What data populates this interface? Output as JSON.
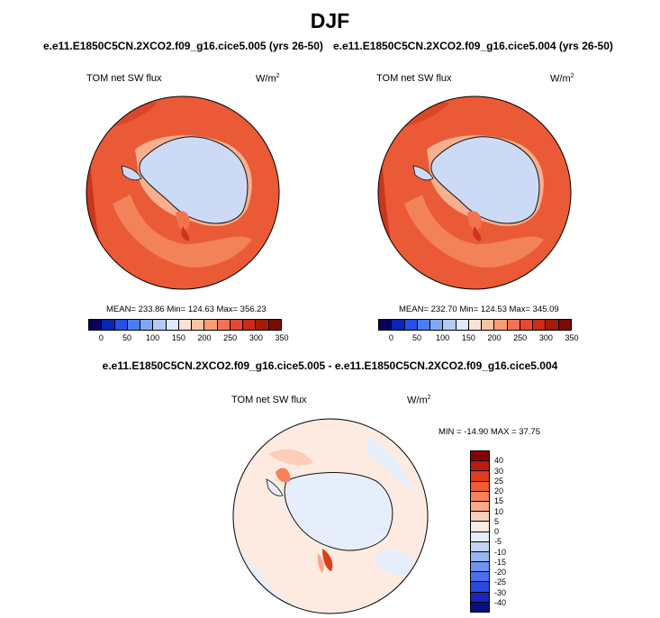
{
  "header": {
    "title": "DJF"
  },
  "panels": [
    {
      "case": "e.e11.E1850C5CN.2XCO2.f09_g16.cice5.005 (yrs 26-50)",
      "variable": "TOM net SW flux",
      "units_base": "W/m",
      "units_exp": "2",
      "stats": "MEAN= 233.86   Min= 124.63   Max= 356.23"
    },
    {
      "case": "e.e11.E1850C5CN.2XCO2.f09_g16.cice5.004 (yrs 26-50)",
      "variable": "TOM net SW flux",
      "units_base": "W/m",
      "units_exp": "2",
      "stats": "MEAN= 232.70   Min= 124.53   Max= 345.09"
    }
  ],
  "abs_colorbar": {
    "colors": [
      "#08005e",
      "#0626b5",
      "#2450e8",
      "#4a7ef0",
      "#7fa8f3",
      "#b3cbf6",
      "#dde8fa",
      "#fce2d2",
      "#fbc3a3",
      "#f89c77",
      "#f37253",
      "#e9472f",
      "#cd2a17",
      "#a51a0b",
      "#7a0c04"
    ],
    "labels": [
      "0",
      "50",
      "100",
      "150",
      "200",
      "250",
      "300",
      "350"
    ]
  },
  "diff": {
    "title": "e.e11.E1850C5CN.2XCO2.f09_g16.cice5.005 - e.e11.E1850C5CN.2XCO2.f09_g16.cice5.004",
    "variable": "TOM net SW flux",
    "units_base": "W/m",
    "units_exp": "2",
    "stats": "MIN = -14.90 MAX =  37.75",
    "colorbar": {
      "colors": [
        "#8a0000",
        "#c01a08",
        "#e03b1a",
        "#f25a30",
        "#f8805a",
        "#fba889",
        "#fccdb7",
        "#fdebe1",
        "#e6eefb",
        "#c4d6f8",
        "#98b6f5",
        "#6f94f2",
        "#4a70ed",
        "#2d47de",
        "#1726b8",
        "#0a0f80"
      ],
      "labels": [
        "40",
        "30",
        "25",
        "20",
        "15",
        "10",
        "5",
        "0",
        "-5",
        "-10",
        "-15",
        "-20",
        "-25",
        "-30",
        "-40"
      ]
    }
  }
}
